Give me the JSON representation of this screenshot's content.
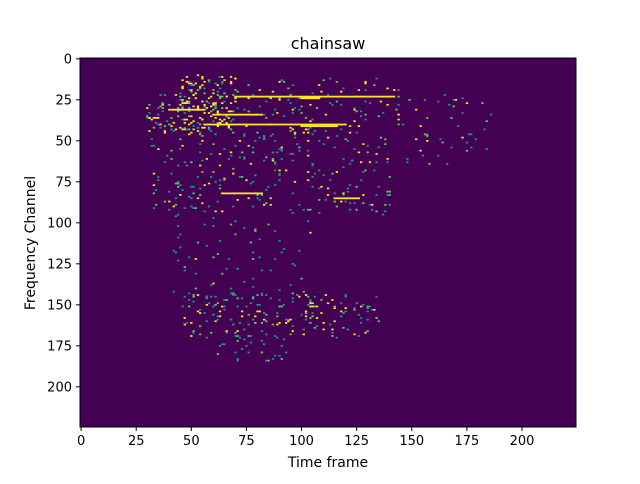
{
  "chart_data": {
    "type": "heatmap",
    "title": "chainsaw",
    "xlabel": "Time frame",
    "ylabel": "Frequency Channel",
    "xlim": [
      -0.5,
      224.5
    ],
    "ylim": [
      224.5,
      -0.5
    ],
    "x_ticks": [
      0,
      25,
      50,
      75,
      100,
      125,
      150,
      175,
      200
    ],
    "y_ticks": [
      0,
      25,
      50,
      75,
      100,
      125,
      150,
      175,
      200
    ],
    "value_range": [
      0,
      1
    ],
    "colormap": "viridis",
    "background_value": 0,
    "colors": {
      "low": "#440154",
      "mid": "#21918c",
      "high": "#fde725",
      "mid_alt": "#5ec962"
    },
    "horizontal_streaks": [
      {
        "row": 23,
        "x_start": 70,
        "x_end": 142,
        "value": 1
      },
      {
        "row": 24,
        "x_start": 100,
        "x_end": 108,
        "value": 1
      },
      {
        "row": 31,
        "x_start": 40,
        "x_end": 56,
        "value": 1
      },
      {
        "row": 34,
        "x_start": 60,
        "x_end": 82,
        "value": 1
      },
      {
        "row": 40,
        "x_start": 56,
        "x_end": 120,
        "value": 1
      },
      {
        "row": 41,
        "x_start": 100,
        "x_end": 116,
        "value": 1
      },
      {
        "row": 82,
        "x_start": 64,
        "x_end": 82,
        "value": 1
      },
      {
        "row": 85,
        "x_start": 115,
        "x_end": 126,
        "value": 1
      }
    ],
    "scatter_regions": [
      {
        "x_min": 45,
        "x_max": 70,
        "y_min": 10,
        "y_max": 45,
        "count": 160,
        "yellow_fraction": 0.55
      },
      {
        "x_min": 30,
        "x_max": 50,
        "y_min": 20,
        "y_max": 45,
        "count": 60,
        "yellow_fraction": 0.35
      },
      {
        "x_min": 70,
        "x_max": 145,
        "y_min": 12,
        "y_max": 45,
        "count": 110,
        "yellow_fraction": 0.3
      },
      {
        "x_min": 145,
        "x_max": 187,
        "y_min": 20,
        "y_max": 65,
        "count": 45,
        "yellow_fraction": 0.15
      },
      {
        "x_min": 30,
        "x_max": 140,
        "y_min": 45,
        "y_max": 95,
        "count": 260,
        "yellow_fraction": 0.2
      },
      {
        "x_min": 42,
        "x_max": 105,
        "y_min": 95,
        "y_max": 145,
        "count": 70,
        "yellow_fraction": 0.05
      },
      {
        "x_min": 45,
        "x_max": 135,
        "y_min": 143,
        "y_max": 170,
        "count": 190,
        "yellow_fraction": 0.3
      },
      {
        "x_min": 62,
        "x_max": 95,
        "y_min": 168,
        "y_max": 184,
        "count": 30,
        "yellow_fraction": 0.1
      }
    ]
  }
}
